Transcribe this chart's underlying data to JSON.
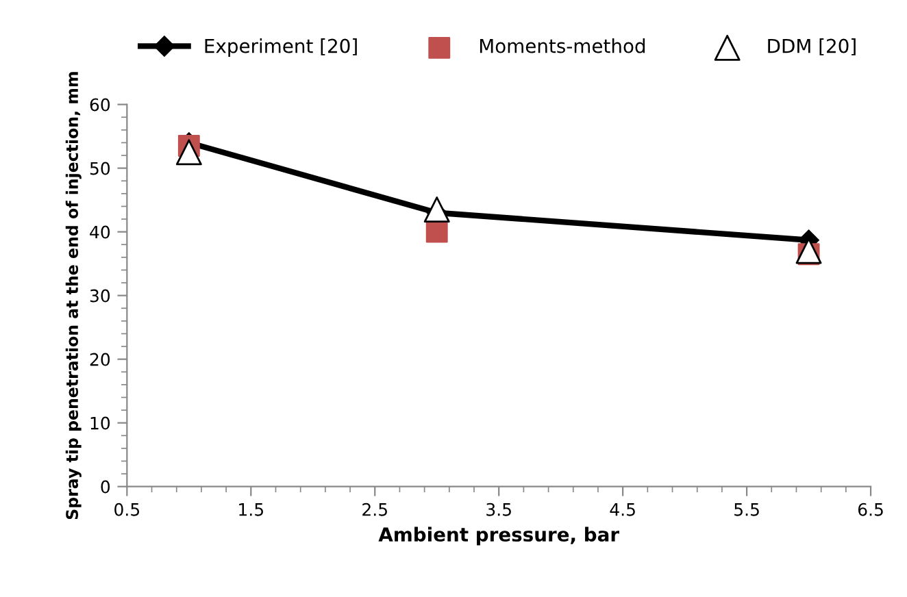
{
  "chart_data": {
    "type": "line",
    "xlabel": "Ambient pressure, bar",
    "ylabel": "Spray tip penetration at the end of injection, mm",
    "x": [
      1,
      3,
      6
    ],
    "series": [
      {
        "name": "Experiment [20]",
        "color": "#000000",
        "marker": "diamond",
        "values": [
          54,
          43,
          38.7
        ]
      },
      {
        "name": "Moments-method",
        "type": "scatter",
        "color": "#c0504d",
        "marker": "square",
        "values": [
          53.5,
          40,
          36.5
        ]
      },
      {
        "name": "DDM [20]",
        "type": "scatter",
        "color": "#000000",
        "marker": "triangle",
        "values": [
          52.5,
          43.5,
          37
        ]
      }
    ],
    "xlim": [
      0.5,
      6.5
    ],
    "xticks": [
      0.5,
      1.5,
      2.5,
      3.5,
      4.5,
      5.5,
      6.5
    ],
    "ylim": [
      0,
      60
    ],
    "yticks": [
      0,
      10,
      20,
      30,
      40,
      50,
      60
    ],
    "grid": false,
    "legend": "top"
  }
}
